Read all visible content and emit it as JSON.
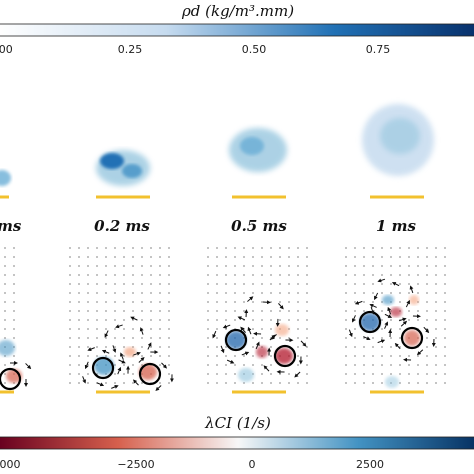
{
  "top_colorbar": {
    "title": "ρd (kg/m³.mm)",
    "ticks": [
      ".00",
      "0.25",
      "0.50",
      "0.75"
    ],
    "colors": [
      "#ffffff",
      "#9ecae1",
      "#2166ac",
      "#08306b"
    ]
  },
  "time_labels": [
    "ms",
    "0.2 ms",
    "0.5 ms",
    "1 ms"
  ],
  "bottom_colorbar": {
    "title": "λCI (1/s)",
    "ticks": [
      "000",
      "−2500",
      "0",
      "2500"
    ],
    "colors": [
      "#67001f",
      "#d6604d",
      "#f7f7f7",
      "#4393c3",
      "#053061"
    ]
  },
  "accents": {
    "baseline": "#f2c12e",
    "circle": "#000000"
  }
}
